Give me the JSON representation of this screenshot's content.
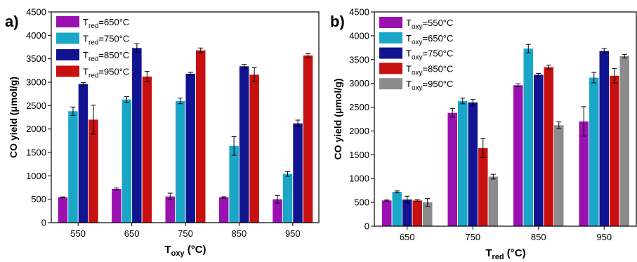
{
  "chart_data": [
    {
      "type": "bar",
      "panel_label": "a)",
      "xlabel": "T",
      "xlabel_sub": "oxy",
      "xlabel_unit": " (°C)",
      "ylabel": "CO yield (μmol/g)",
      "categories": [
        "550",
        "650",
        "750",
        "850",
        "950"
      ],
      "ylim": [
        0,
        4500
      ],
      "yticks": [
        0,
        500,
        1000,
        1500,
        2000,
        2500,
        3000,
        3500,
        4000,
        4500
      ],
      "legend_position": "top-left",
      "series": [
        {
          "name": "T_red=650°C",
          "label_main": "T",
          "label_sub": "red",
          "label_rest": "=650°C",
          "color": "#9a10b0",
          "values": [
            540,
            720,
            560,
            540,
            500
          ],
          "errors": [
            10,
            20,
            70,
            15,
            80
          ]
        },
        {
          "name": "T_red=750°C",
          "label_main": "T",
          "label_sub": "red",
          "label_rest": "=750°C",
          "color": "#1aa7c7",
          "values": [
            2380,
            2630,
            2600,
            1640,
            1040
          ],
          "errors": [
            90,
            60,
            60,
            200,
            50
          ]
        },
        {
          "name": "T_red=850°C",
          "label_main": "T",
          "label_sub": "red",
          "label_rest": "=850°C",
          "color": "#101490",
          "values": [
            2960,
            3730,
            3180,
            3340,
            2120
          ],
          "errors": [
            30,
            90,
            30,
            40,
            70
          ]
        },
        {
          "name": "T_red=950°C",
          "label_main": "T",
          "label_sub": "red",
          "label_rest": "=950°C",
          "color": "#c81010",
          "values": [
            2200,
            3120,
            3680,
            3160,
            3570
          ],
          "errors": [
            310,
            110,
            50,
            150,
            40
          ]
        }
      ]
    },
    {
      "type": "bar",
      "panel_label": "b)",
      "xlabel": "T",
      "xlabel_sub": "red",
      "xlabel_unit": " (°C)",
      "ylabel": "CO yield (μmol/g)",
      "categories": [
        "650",
        "750",
        "850",
        "950"
      ],
      "ylim": [
        0,
        4500
      ],
      "yticks": [
        0,
        500,
        1000,
        1500,
        2000,
        2500,
        3000,
        3500,
        4000,
        4500
      ],
      "legend_position": "top-left",
      "series": [
        {
          "name": "T_oxy=550°C",
          "label_main": "T",
          "label_sub": "oxy",
          "label_rest": "=550°C",
          "color": "#9a10b0",
          "values": [
            540,
            2380,
            2960,
            2200
          ],
          "errors": [
            10,
            90,
            30,
            310
          ]
        },
        {
          "name": "T_oxy=650°C",
          "label_main": "T",
          "label_sub": "oxy",
          "label_rest": "=650°C",
          "color": "#1aa7c7",
          "values": [
            720,
            2630,
            3730,
            3120
          ],
          "errors": [
            20,
            60,
            90,
            110
          ]
        },
        {
          "name": "T_oxy=750°C",
          "label_main": "T",
          "label_sub": "oxy",
          "label_rest": "=750°C",
          "color": "#101490",
          "values": [
            560,
            2600,
            3180,
            3680
          ],
          "errors": [
            70,
            60,
            30,
            50
          ]
        },
        {
          "name": "T_oxy=850°C",
          "label_main": "T",
          "label_sub": "oxy",
          "label_rest": "=850°C",
          "color": "#c81010",
          "values": [
            540,
            1640,
            3340,
            3160
          ],
          "errors": [
            15,
            200,
            40,
            150
          ]
        },
        {
          "name": "T_oxy=950°C",
          "label_main": "T",
          "label_sub": "oxy",
          "label_rest": "=950°C",
          "color": "#8c8c8c",
          "values": [
            500,
            1040,
            2120,
            3570
          ],
          "errors": [
            80,
            50,
            70,
            40
          ]
        }
      ]
    }
  ]
}
